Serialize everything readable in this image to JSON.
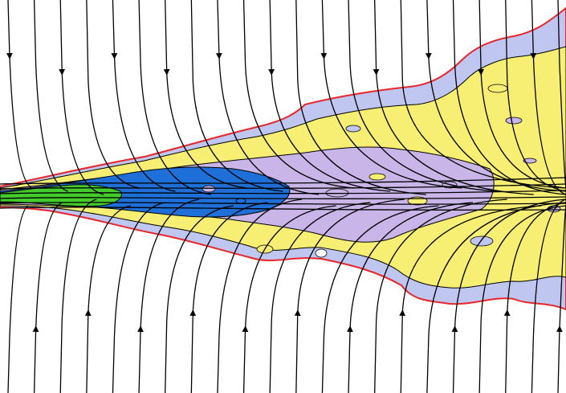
{
  "figure": {
    "description_free": true,
    "colors": {
      "background": "#ffffff",
      "outer_boundary": "#e8262b",
      "outer_region": "#bfc6f0",
      "middle_region": "#f7ef73",
      "inner_region": "#c9b5e8",
      "core_region": "#1e6fd8",
      "nozzle_region": "#44cc2c",
      "contour_line": "#000000",
      "streamline": "#000000"
    },
    "streamline_count_top": 22,
    "streamline_count_bottom": 22
  }
}
